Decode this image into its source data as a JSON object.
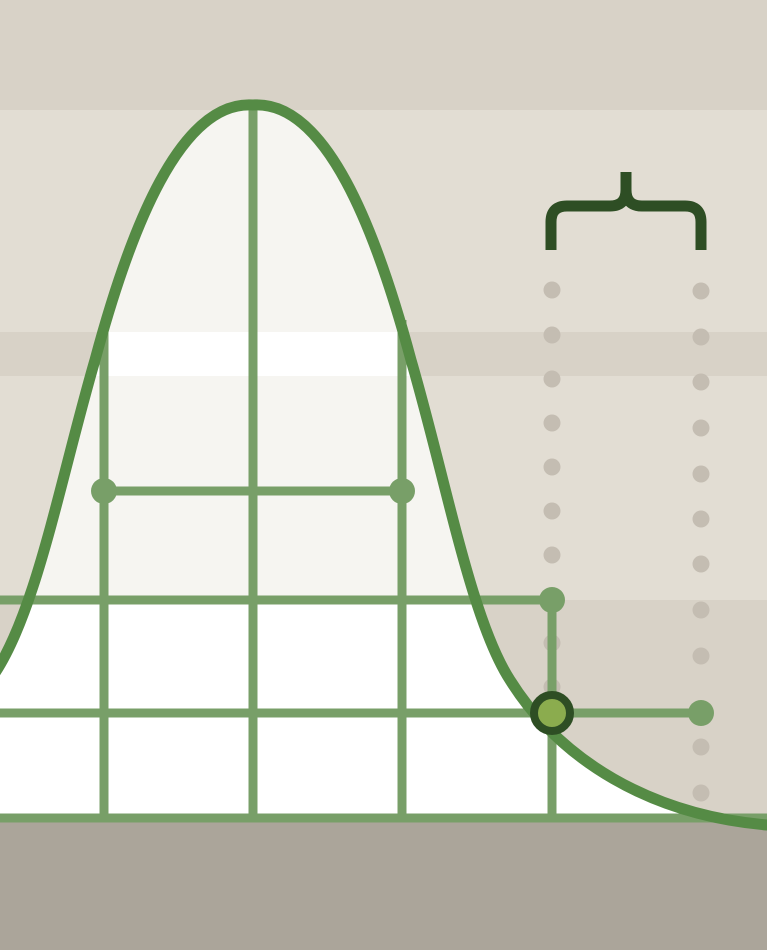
{
  "colors": {
    "background": "#d8d2c7",
    "band_light": "#e2ddd3",
    "curve_fill": "#f6f5f1",
    "white": "#ffffff",
    "floor": "#aba59a",
    "curve": "#558b45",
    "grid": "#789f68",
    "bracket": "#2e4e24",
    "dots": "#c4bdb2",
    "marker_fill": "#8bac4e",
    "marker_ring": "#2e4e24"
  },
  "icons": {
    "curve": "bell-curve-icon",
    "bracket": "curly-brace-icon",
    "marker": "data-point-icon"
  }
}
